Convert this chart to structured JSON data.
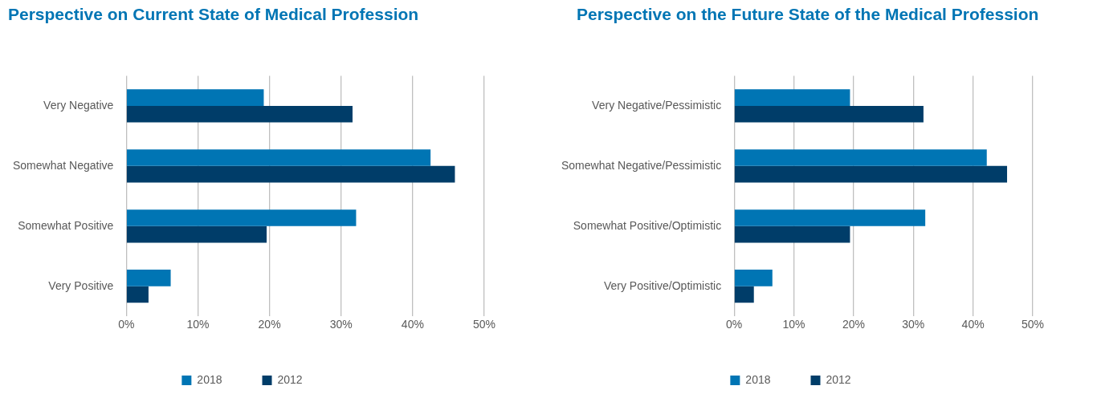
{
  "chart_data": [
    {
      "type": "bar",
      "orientation": "horizontal",
      "title": "Perspective on Current State of Medical Profession",
      "categories": [
        "Very Negative",
        "Somewhat Negative",
        "Somewhat Positive",
        "Very Positive"
      ],
      "series": [
        {
          "name": "2018",
          "color": "#0075b4",
          "values": [
            19.2,
            42.5,
            32.1,
            6.2
          ]
        },
        {
          "name": "2012",
          "color": "#003d69",
          "values": [
            31.6,
            45.9,
            19.6,
            3.1
          ]
        }
      ],
      "xlim": [
        0,
        50
      ],
      "xticks": [
        {
          "value": 0,
          "label": "0%"
        },
        {
          "value": 10,
          "label": "10%"
        },
        {
          "value": 20,
          "label": "20%"
        },
        {
          "value": 30,
          "label": "30%"
        },
        {
          "value": 40,
          "label": "40%"
        },
        {
          "value": 50,
          "label": "50%"
        }
      ],
      "grid": "x",
      "legend": "bottom"
    },
    {
      "type": "bar",
      "orientation": "horizontal",
      "title": "Perspective on the Future State of the Medical Profession",
      "categories": [
        "Very Negative/Pessimistic",
        "Somewhat Negative/Pessimistic",
        "Somewhat Positive/Optimistic",
        "Very Positive/Optimistic"
      ],
      "series": [
        {
          "name": "2018",
          "color": "#0075b4",
          "values": [
            19.4,
            42.3,
            32.0,
            6.4
          ]
        },
        {
          "name": "2012",
          "color": "#003d69",
          "values": [
            31.7,
            45.7,
            19.4,
            3.3
          ]
        }
      ],
      "xlim": [
        0,
        50
      ],
      "xticks": [
        {
          "value": 0,
          "label": "0%"
        },
        {
          "value": 10,
          "label": "10%"
        },
        {
          "value": 20,
          "label": "20%"
        },
        {
          "value": 30,
          "label": "30%"
        },
        {
          "value": 40,
          "label": "40%"
        },
        {
          "value": 50,
          "label": "50%"
        }
      ],
      "grid": "x",
      "legend": "bottom"
    }
  ]
}
